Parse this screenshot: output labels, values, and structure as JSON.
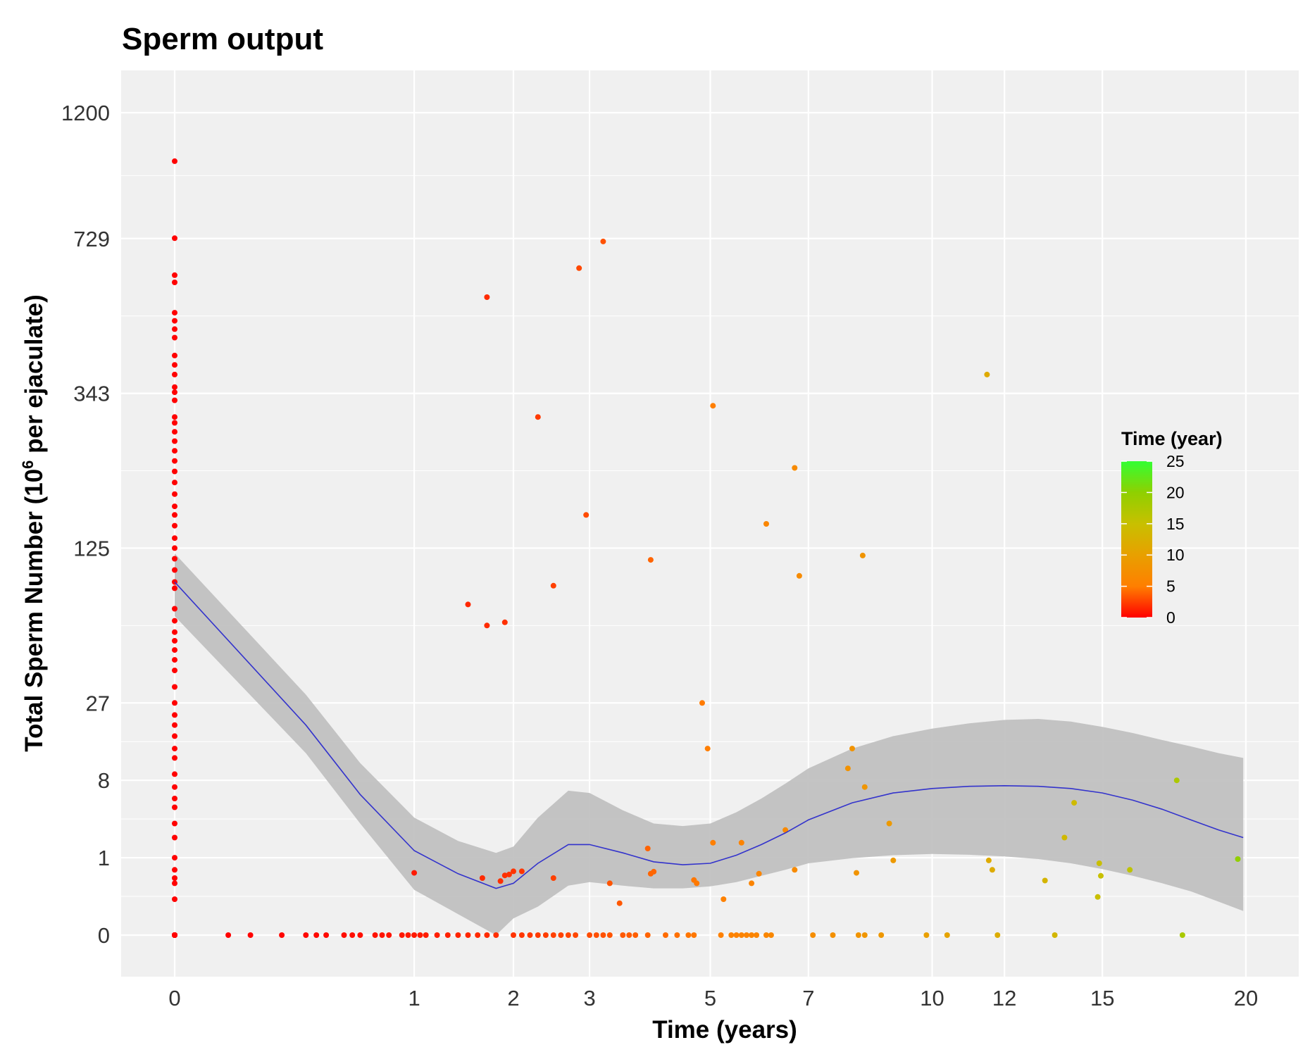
{
  "chart_data": {
    "type": "scatter",
    "title": "Sperm output",
    "xlabel": "Time (years)",
    "ylabel_main": "Total Sperm Number (10",
    "ylabel_sup": "6",
    "ylabel_rest": " per ejaculate)",
    "x_scale": "sqrt",
    "y_scale": "cube-root",
    "xlim": [
      0,
      20
    ],
    "ylim": [
      0,
      1200
    ],
    "x_ticks": [
      0,
      1,
      2,
      3,
      5,
      7,
      10,
      12,
      15,
      20
    ],
    "x_tick_labels": [
      "0",
      "1",
      "2",
      "3",
      "5",
      "7",
      "10",
      "12",
      "15",
      "20"
    ],
    "y_ticks": [
      0,
      1,
      8,
      27,
      125,
      343,
      729,
      1200
    ],
    "y_tick_labels": [
      "0",
      "1",
      "8",
      "27",
      "125",
      "343",
      "729",
      "1200"
    ],
    "grid": true,
    "legend": {
      "title": "Time (year)",
      "placement": "right",
      "ticks": [
        "0",
        "5",
        "10",
        "15",
        "20",
        "25"
      ],
      "colors": [
        "#FF0000",
        "#FF7F00",
        "#E8A000",
        "#C8C000",
        "#8FD000",
        "#33FF33"
      ]
    },
    "colors": {
      "panel": "#F0F0F0",
      "grid": "#FFFFFF",
      "smooth_line": "#3333CC",
      "ribbon": "#BEBEBE"
    },
    "series": [
      {
        "x": [
          0,
          0,
          0,
          0,
          0,
          0,
          0,
          0,
          0,
          0,
          0,
          0,
          0,
          0,
          0,
          0,
          0,
          0,
          0,
          0,
          0,
          0,
          0,
          0,
          0,
          0,
          0,
          0,
          0,
          0,
          0,
          0,
          0,
          0,
          0,
          0,
          0,
          0,
          0,
          0,
          0,
          0,
          0,
          0,
          0,
          0,
          0,
          0,
          0,
          0,
          0,
          0,
          0,
          0,
          0,
          0,
          0,
          0,
          0,
          0,
          0,
          0,
          0,
          0,
          0,
          0,
          1.7,
          2.3,
          2.85,
          3.2,
          1.5,
          1.7,
          1.9,
          2.5,
          2.95,
          3.95,
          4.85,
          4.95,
          5.05,
          6.1,
          6.7,
          6.8,
          8.25,
          11.5,
          1.0,
          1.65,
          1.85,
          1.9,
          1.95,
          2.0,
          2.1,
          2.5,
          3.3,
          3.45,
          3.9,
          3.95,
          4.0,
          4.7,
          4.75,
          5.05,
          5.25,
          5.6,
          5.8,
          5.95,
          6.5,
          6.7,
          7.9,
          8.0,
          8.1,
          8.3,
          8.9,
          9.0,
          11.55,
          11.65,
          13.2,
          13.8,
          14.1,
          14.85,
          14.9,
          14.95,
          15.9,
          17.5,
          19.7,
          0.05,
          0.1,
          0.2,
          0.3,
          0.35,
          0.4,
          0.5,
          0.55,
          0.6,
          0.7,
          0.75,
          0.8,
          0.9,
          0.95,
          1.0,
          1.05,
          1.1,
          1.2,
          1.3,
          1.4,
          1.5,
          1.6,
          1.7,
          1.8,
          2.0,
          2.1,
          2.2,
          2.3,
          2.4,
          2.5,
          2.6,
          2.7,
          2.8,
          3.0,
          3.1,
          3.2,
          3.3,
          3.5,
          3.6,
          3.7,
          3.9,
          4.2,
          4.4,
          4.6,
          4.7,
          5.2,
          5.4,
          5.5,
          5.6,
          5.7,
          5.8,
          5.9,
          6.1,
          6.2,
          7.1,
          7.55,
          8.15,
          8.3,
          8.7,
          9.85,
          10.4,
          11.8,
          13.5,
          17.7
        ],
        "y": [
          1000,
          730,
          620,
          600,
          520,
          500,
          480,
          460,
          420,
          400,
          380,
          355,
          345,
          330,
          300,
          290,
          275,
          260,
          245,
          230,
          215,
          200,
          185,
          170,
          160,
          148,
          135,
          125,
          115,
          105,
          95,
          90,
          75,
          67,
          60,
          55,
          50,
          45,
          40,
          33,
          27,
          23,
          20,
          17,
          14,
          12,
          9,
          7,
          5.5,
          4.5,
          3,
          2,
          1,
          0.6,
          0.4,
          0.3,
          0.1,
          0,
          0,
          0,
          0,
          0,
          0,
          0,
          0,
          0,
          560,
          300,
          640,
          720,
          78,
          64,
          66,
          92,
          160,
          114,
          27,
          14,
          320,
          150,
          220,
          100,
          118,
          380,
          0.52,
          0.4,
          0.34,
          0.46,
          0.48,
          0.56,
          0.56,
          0.4,
          0.3,
          0.07,
          1.4,
          0.5,
          0.55,
          0.36,
          0.3,
          1.7,
          0.1,
          1.7,
          0.3,
          0.5,
          2.5,
          0.6,
          10,
          14,
          0.52,
          7,
          3,
          0.9,
          0.9,
          0.6,
          0.35,
          2,
          5,
          0.12,
          0.8,
          0.45,
          0.6,
          8,
          0.95,
          0,
          0,
          0,
          0,
          0,
          0,
          0,
          0,
          0,
          0,
          0,
          0,
          0,
          0,
          0,
          0,
          0,
          0,
          0,
          0,
          0,
          0,
          0,
          0,
          0,
          0,
          0,
          0,
          0,
          0,
          0,
          0,
          0,
          0,
          0,
          0,
          0,
          0,
          0,
          0,
          0,
          0,
          0,
          0,
          0,
          0,
          0,
          0,
          0,
          0,
          0,
          0,
          0,
          0,
          0,
          0,
          0,
          0,
          0,
          0,
          0,
          0,
          0,
          0
        ]
      }
    ],
    "smooth": {
      "x": [
        0,
        0.3,
        0.6,
        1.0,
        1.4,
        1.8,
        2.0,
        2.3,
        2.7,
        3.0,
        3.5,
        4.0,
        4.5,
        5.0,
        5.5,
        6.0,
        6.5,
        7.0,
        8.0,
        9.0,
        10.0,
        11.0,
        12.0,
        13.0,
        14.0,
        15.0,
        16.0,
        17.0,
        18.0,
        19.0,
        19.9
      ],
      "y": [
        95,
        20,
        6,
        1.3,
        0.5,
        0.22,
        0.3,
        0.8,
        1.6,
        1.6,
        1.2,
        0.85,
        0.75,
        0.8,
        1.1,
        1.6,
        2.3,
        3.3,
        5,
        6.2,
        6.8,
        7.1,
        7.2,
        7.1,
        6.8,
        6.2,
        5.3,
        4.3,
        3.3,
        2.5,
        2.0
      ],
      "upper": [
        120,
        30,
        11,
        3.5,
        1.8,
        1.2,
        1.5,
        3.5,
        6.5,
        6.2,
        4.2,
        3,
        2.8,
        3,
        4,
        5.5,
        7.5,
        10,
        14,
        17,
        19,
        20.5,
        21.5,
        21.8,
        21,
        19.5,
        17.8,
        16,
        14.5,
        13,
        12
      ],
      "lower": [
        70,
        13,
        3,
        0.2,
        0.02,
        0,
        0.01,
        0.05,
        0.26,
        0.32,
        0.26,
        0.22,
        0.22,
        0.25,
        0.32,
        0.45,
        0.6,
        0.8,
        0.98,
        1.1,
        1.15,
        1.12,
        1.05,
        0.95,
        0.8,
        0.62,
        0.45,
        0.3,
        0.18,
        0.08,
        0.03
      ]
    }
  }
}
